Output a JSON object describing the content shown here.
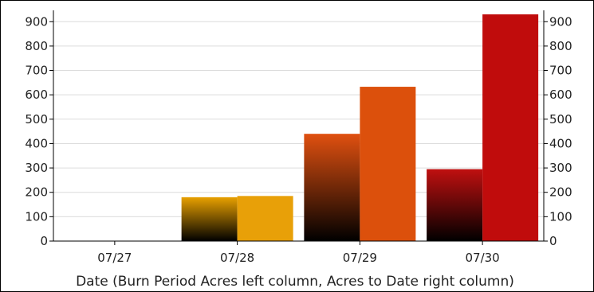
{
  "chart_data": {
    "type": "bar",
    "categories": [
      "07/27",
      "07/28",
      "07/29",
      "07/30"
    ],
    "series": [
      {
        "values": [
          0,
          180,
          440,
          295
        ],
        "colors": [
          "#f0a000",
          "#e8a000",
          "#e05010",
          "#c01010"
        ],
        "style": "gradient-to-black"
      },
      {
        "values": [
          0,
          185,
          633,
          930
        ],
        "colors": [
          "#e8a008",
          "#e8a008",
          "#dc500c",
          "#c00c0c"
        ],
        "style": "solid"
      }
    ],
    "xlabel": "Date   (Burn Period Acres left column, Acres to Date right column)",
    "ylim": [
      0,
      940
    ],
    "yticks": [
      0,
      100,
      200,
      300,
      400,
      500,
      600,
      700,
      800,
      900
    ],
    "grid": true,
    "dual_y_axis": true
  }
}
